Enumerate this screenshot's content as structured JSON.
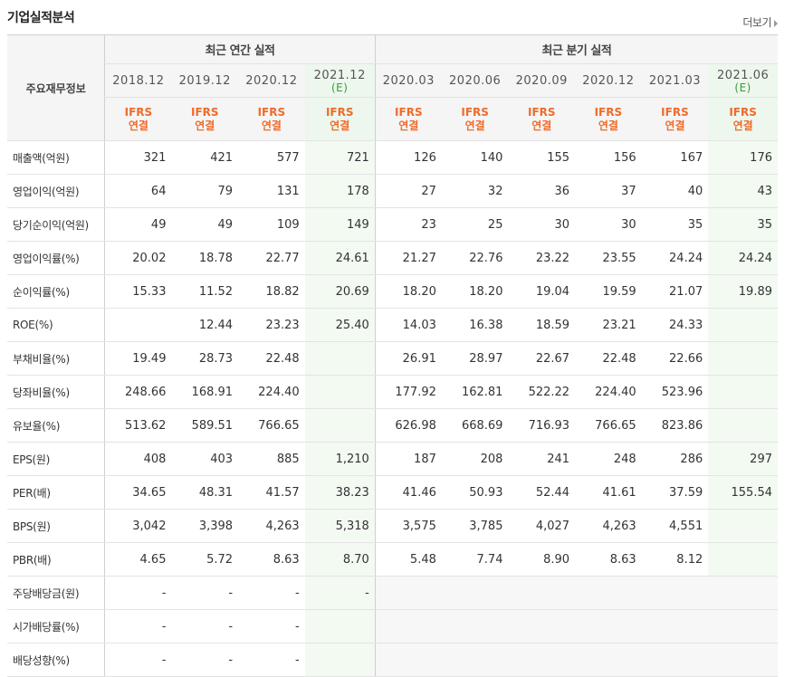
{
  "title": "기업실적분석",
  "more_label": "더보기",
  "table": {
    "row_header_label": "주요재무정보",
    "annual_group_label": "최근 연간 실적",
    "quarter_group_label": "최근 분기 실적",
    "periods": [
      {
        "label": "2018.12",
        "est": ""
      },
      {
        "label": "2019.12",
        "est": ""
      },
      {
        "label": "2020.12",
        "est": ""
      },
      {
        "label": "2021.12",
        "est": "(E)"
      },
      {
        "label": "2020.03",
        "est": ""
      },
      {
        "label": "2020.06",
        "est": ""
      },
      {
        "label": "2020.09",
        "est": ""
      },
      {
        "label": "2020.12",
        "est": ""
      },
      {
        "label": "2021.03",
        "est": ""
      },
      {
        "label": "2021.06",
        "est": "(E)"
      }
    ],
    "basis_top": "IFRS",
    "basis_bottom": "연결",
    "rows": [
      {
        "label": "매출액(억원)",
        "values": [
          "321",
          "421",
          "577",
          "721",
          "126",
          "140",
          "155",
          "156",
          "167",
          "176"
        ]
      },
      {
        "label": "영업이익(억원)",
        "values": [
          "64",
          "79",
          "131",
          "178",
          "27",
          "32",
          "36",
          "37",
          "40",
          "43"
        ]
      },
      {
        "label": "당기순이익(억원)",
        "values": [
          "49",
          "49",
          "109",
          "149",
          "23",
          "25",
          "30",
          "30",
          "35",
          "35"
        ]
      },
      {
        "label": "영업이익률(%)",
        "values": [
          "20.02",
          "18.78",
          "22.77",
          "24.61",
          "21.27",
          "22.76",
          "23.22",
          "23.55",
          "24.24",
          "24.24"
        ]
      },
      {
        "label": "순이익률(%)",
        "values": [
          "15.33",
          "11.52",
          "18.82",
          "20.69",
          "18.20",
          "18.20",
          "19.04",
          "19.59",
          "21.07",
          "19.89"
        ]
      },
      {
        "label": "ROE(%)",
        "values": [
          "",
          "12.44",
          "23.23",
          "25.40",
          "14.03",
          "16.38",
          "18.59",
          "23.21",
          "24.33",
          ""
        ]
      },
      {
        "label": "부채비율(%)",
        "values": [
          "19.49",
          "28.73",
          "22.48",
          "",
          "26.91",
          "28.97",
          "22.67",
          "22.48",
          "22.66",
          ""
        ]
      },
      {
        "label": "당좌비율(%)",
        "values": [
          "248.66",
          "168.91",
          "224.40",
          "",
          "177.92",
          "162.81",
          "522.22",
          "224.40",
          "523.96",
          ""
        ]
      },
      {
        "label": "유보율(%)",
        "values": [
          "513.62",
          "589.51",
          "766.65",
          "",
          "626.98",
          "668.69",
          "716.93",
          "766.65",
          "823.86",
          ""
        ]
      },
      {
        "label": "EPS(원)",
        "values": [
          "408",
          "403",
          "885",
          "1,210",
          "187",
          "208",
          "241",
          "248",
          "286",
          "297"
        ]
      },
      {
        "label": "PER(배)",
        "values": [
          "34.65",
          "48.31",
          "41.57",
          "38.23",
          "41.46",
          "50.93",
          "52.44",
          "41.61",
          "37.59",
          "155.54"
        ]
      },
      {
        "label": "BPS(원)",
        "values": [
          "3,042",
          "3,398",
          "4,263",
          "5,318",
          "3,575",
          "3,785",
          "4,027",
          "4,263",
          "4,551",
          ""
        ]
      },
      {
        "label": "PBR(배)",
        "values": [
          "4.65",
          "5.72",
          "8.63",
          "8.70",
          "5.48",
          "7.74",
          "8.90",
          "8.63",
          "8.12",
          ""
        ]
      },
      {
        "label": "주당배당금(원)",
        "values": [
          "-",
          "-",
          "-",
          "-",
          "",
          "",
          "",
          "",
          "",
          ""
        ]
      },
      {
        "label": "시가배당률(%)",
        "values": [
          "-",
          "-",
          "-",
          "",
          "",
          "",
          "",
          "",
          "",
          ""
        ]
      },
      {
        "label": "배당성향(%)",
        "values": [
          "-",
          "-",
          "-",
          "",
          "",
          "",
          "",
          "",
          "",
          ""
        ]
      }
    ]
  }
}
